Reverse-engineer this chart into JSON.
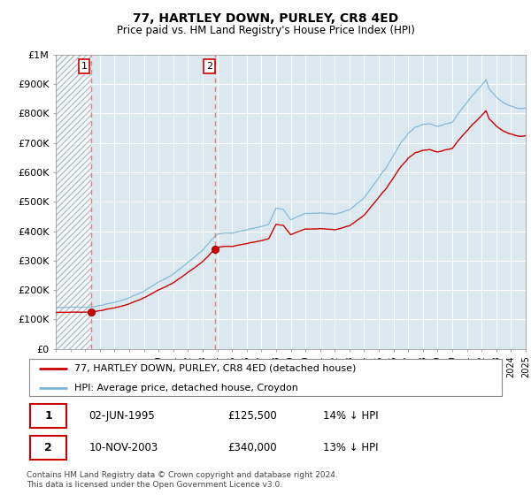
{
  "title": "77, HARTLEY DOWN, PURLEY, CR8 4ED",
  "subtitle": "Price paid vs. HM Land Registry's House Price Index (HPI)",
  "legend_line1": "77, HARTLEY DOWN, PURLEY, CR8 4ED (detached house)",
  "legend_line2": "HPI: Average price, detached house, Croydon",
  "footnote": "Contains HM Land Registry data © Crown copyright and database right 2024.\nThis data is licensed under the Open Government Licence v3.0.",
  "table_rows": [
    {
      "num": "1",
      "date": "02-JUN-1995",
      "price": "£125,500",
      "hpi": "14% ↓ HPI"
    },
    {
      "num": "2",
      "date": "10-NOV-2003",
      "price": "£340,000",
      "hpi": "13% ↓ HPI"
    }
  ],
  "sale1_year": 1995.42,
  "sale1_price": 125500,
  "sale2_year": 2003.86,
  "sale2_price": 340000,
  "red_line_color": "#cc0000",
  "blue_line_color": "#7ab4d4",
  "vline_color": "#e08080",
  "plot_bg_color": "#dce8f0",
  "hatch_color": "#c0c8d0",
  "ylim": [
    0,
    1000000
  ],
  "xlim_start": 1993,
  "xlim_end": 2025,
  "yticks": [
    0,
    100000,
    200000,
    300000,
    400000,
    500000,
    600000,
    700000,
    800000,
    900000,
    1000000
  ],
  "ytick_labels": [
    "£0",
    "£100K",
    "£200K",
    "£300K",
    "£400K",
    "£500K",
    "£600K",
    "£700K",
    "£800K",
    "£900K",
    "£1M"
  ]
}
